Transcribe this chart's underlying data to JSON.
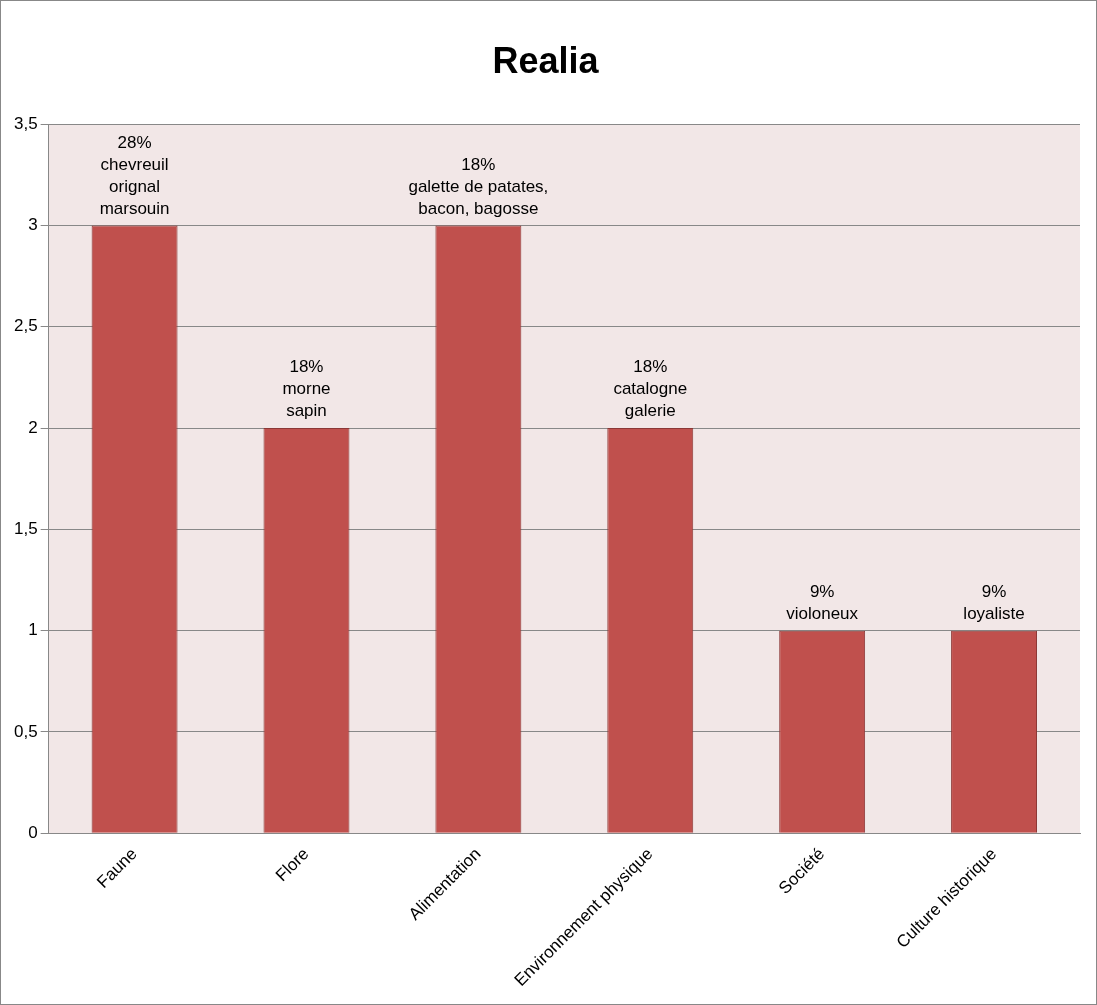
{
  "chart_data": {
    "type": "bar",
    "title": "Realia",
    "categories": [
      "Faune",
      "Flore",
      "Alimentation",
      "Environnement physique",
      "Société",
      "Culture historique"
    ],
    "values": [
      3,
      2,
      3,
      2,
      1,
      1
    ],
    "color": "#c0504d",
    "annotations": [
      {
        "text": "28%\nchevreuil\norignal\nmarsouin",
        "x": "Faune",
        "y": 3
      },
      {
        "text": "18%\nmorne\nsapin",
        "x": "Flore",
        "y": 2
      },
      {
        "text": "18%\ngalette de patates,\nbacon, bagosse",
        "x": "Alimentation",
        "y": 3
      },
      {
        "text": "18%\ncatalogne\ngalerie",
        "x": "Environnement physique",
        "y": 2
      },
      {
        "text": "9%\nvioloneux",
        "x": "Société",
        "y": 1
      },
      {
        "text": "9%\nloyaliste",
        "x": "Culture historique",
        "y": 1
      }
    ],
    "ylim": [
      0,
      3.5
    ],
    "yticks": [
      0,
      {
        "value": 0.5,
        "label": "0,5"
      },
      1,
      {
        "value": 1.5,
        "label": "1,5"
      },
      2,
      {
        "value": 2.5,
        "label": "2,5"
      },
      3,
      {
        "value": 3.5,
        "label": "3,5"
      }
    ],
    "grid": "y",
    "legend": false
  }
}
